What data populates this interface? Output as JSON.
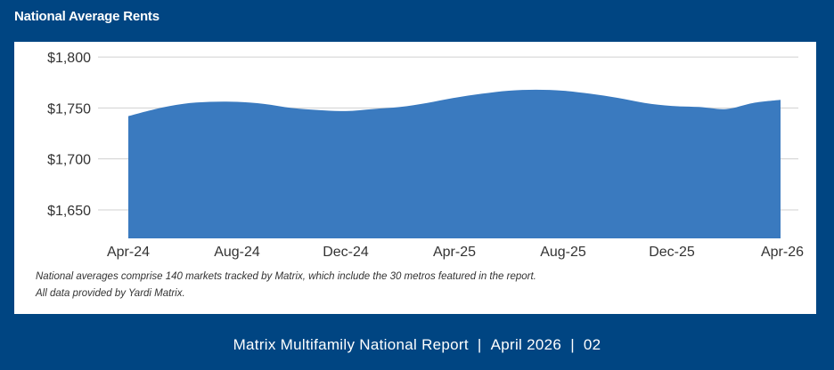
{
  "section": {
    "title": "National Average Rents"
  },
  "chart_data": {
    "type": "area",
    "title": "National Average Rents",
    "x": [
      "Apr-24",
      "May-24",
      "Jun-24",
      "Jul-24",
      "Aug-24",
      "Sep-24",
      "Oct-24",
      "Nov-24",
      "Dec-24",
      "Jan-25",
      "Feb-25",
      "Mar-25",
      "Apr-25",
      "May-25",
      "Jun-25",
      "Jul-25",
      "Aug-25",
      "Sep-25",
      "Oct-25",
      "Nov-25",
      "Dec-25",
      "Jan-26",
      "Feb-26",
      "Mar-26",
      "Apr-26"
    ],
    "values": [
      1742,
      1749,
      1754,
      1756,
      1756,
      1754,
      1750,
      1748,
      1747,
      1749,
      1751,
      1755,
      1760,
      1764,
      1767,
      1768,
      1767,
      1764,
      1760,
      1755,
      1752,
      1751,
      1749,
      1755,
      1758
    ],
    "xtick_labels": [
      "Apr-24",
      "Aug-24",
      "Dec-24",
      "Apr-25",
      "Aug-25",
      "Dec-25",
      "Apr-26"
    ],
    "ytick_labels": [
      "$1,650",
      "$1,700",
      "$1,750",
      "$1,800"
    ],
    "yticks": [
      1650,
      1700,
      1750,
      1800
    ],
    "ylim": [
      1622,
      1815
    ],
    "grid": true,
    "color": "#3a7abf",
    "xlabel": "",
    "ylabel": ""
  },
  "notes": {
    "line1": "National averages comprise 140 markets tracked by Matrix, which include the 30 metros featured in the report.",
    "line2": "All data provided by Yardi Matrix."
  },
  "footer": {
    "report": "Matrix Multifamily National Report",
    "date": "April 2026",
    "page": "02",
    "separator": "|"
  }
}
